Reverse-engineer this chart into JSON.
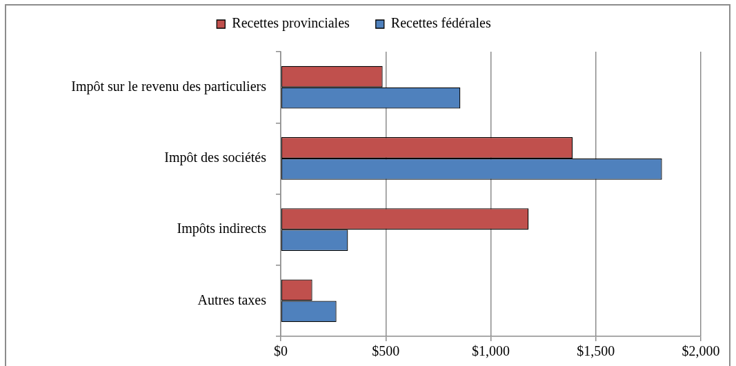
{
  "chart_data": {
    "type": "bar",
    "orientation": "horizontal",
    "categories": [
      "Impôt sur le revenu des particuliers",
      "Impôt des sociétés",
      "Impôts indirects",
      "Autres taxes"
    ],
    "series": [
      {
        "name": "Recettes provinciales",
        "color": "#c0504d",
        "values": [
          485,
          1390,
          1180,
          150
        ]
      },
      {
        "name": "Recettes fédérales",
        "color": "#4f81bd",
        "values": [
          855,
          1815,
          320,
          265
        ]
      }
    ],
    "xlim": [
      0,
      2000
    ],
    "xticks": [
      {
        "value": 0,
        "label": "$0"
      },
      {
        "value": 500,
        "label": "$500"
      },
      {
        "value": 1000,
        "label": "$1,000"
      },
      {
        "value": 1500,
        "label": "$1,500"
      },
      {
        "value": 2000,
        "label": "$2,000"
      }
    ],
    "grid": "x",
    "legend": "top"
  }
}
